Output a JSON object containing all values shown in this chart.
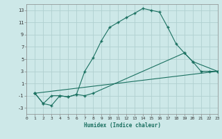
{
  "xlabel": "Humidex (Indice chaleur)",
  "bg_color": "#cde8e8",
  "grid_color": "#b0d0d0",
  "line_color": "#1a7060",
  "xlim": [
    0,
    23
  ],
  "ylim": [
    -4,
    14
  ],
  "xticks": [
    0,
    1,
    2,
    3,
    4,
    5,
    6,
    7,
    8,
    9,
    10,
    11,
    12,
    13,
    14,
    15,
    16,
    17,
    18,
    19,
    20,
    21,
    22,
    23
  ],
  "yticks": [
    -3,
    -1,
    1,
    3,
    5,
    7,
    9,
    11,
    13
  ],
  "line1_x": [
    1,
    2,
    3,
    4,
    5,
    6,
    7,
    8,
    9,
    10,
    11,
    12,
    13,
    14,
    15,
    16,
    17,
    18,
    19,
    20,
    21,
    22,
    23
  ],
  "line1_y": [
    -0.6,
    -2.3,
    -2.6,
    -1.0,
    -1.2,
    -0.8,
    3.0,
    5.2,
    8.0,
    10.2,
    11.0,
    11.8,
    12.5,
    13.3,
    13.0,
    12.7,
    10.2,
    7.5,
    6.0,
    4.6,
    3.0,
    3.0,
    3.0
  ],
  "line2_x": [
    1,
    2,
    3,
    4,
    5,
    6,
    7,
    8,
    19,
    20,
    23
  ],
  "line2_y": [
    -0.6,
    -2.3,
    -1.0,
    -1.0,
    -1.2,
    -0.8,
    -1.0,
    -0.6,
    6.0,
    4.6,
    3.0
  ],
  "line3_x": [
    1,
    23
  ],
  "line3_y": [
    -0.6,
    3.0
  ]
}
